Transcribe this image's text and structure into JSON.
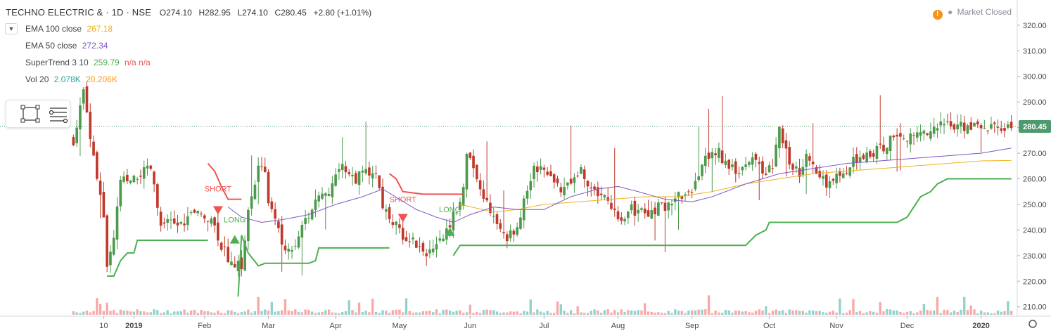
{
  "header": {
    "symbol": "TECHNO ELECTRIC & · 1D · NSE",
    "open": "O274.10",
    "high": "H282.95",
    "low": "L274.10",
    "close": "C280.45",
    "change": "+2.80 (+1.01%)"
  },
  "status": {
    "label": "Market Closed",
    "icon": "warning-icon"
  },
  "indicators": [
    {
      "name": "EMA 100 close",
      "value": "267.18",
      "color": "#f2b01e"
    },
    {
      "name": "EMA 50 close",
      "value": "272.34",
      "color": "#7e57c2"
    },
    {
      "name": "SuperTrend 3 10",
      "value": "259.79",
      "extra": "n/a n/a",
      "color": "#4caf50",
      "extra_color": "#ef5350"
    },
    {
      "name": "Vol 20",
      "value": "2.078K",
      "value2": "20.206K",
      "color": "#26a69a",
      "color2": "#ff9800"
    }
  ],
  "colors": {
    "up": "#26a69a",
    "down": "#ef5350",
    "up_candle": "#4c9a4c",
    "down_candle": "#c0392b",
    "long": "#4caf50",
    "short": "#ef5350",
    "ema100": "#f2b01e",
    "ema50": "#7e57c2"
  },
  "chart_data": {
    "type": "candlestick",
    "symbol": "TECHNO ELECTRIC &",
    "interval": "1D",
    "exchange": "NSE",
    "last_price": "280.45",
    "y_ticks": [
      "320.00",
      "310.00",
      "300.00",
      "290.00",
      "280.00",
      "270.00",
      "260.00",
      "250.00",
      "240.00",
      "230.00",
      "220.00",
      "210.00"
    ],
    "ylim": [
      208,
      326
    ],
    "x_ticks": [
      "10",
      "2019",
      "Feb",
      "Mar",
      "Apr",
      "May",
      "Jun",
      "Jul",
      "Aug",
      "Sep",
      "Oct",
      "Nov",
      "Dec",
      "2020"
    ],
    "x_tick_index": [
      9,
      18,
      39,
      58,
      78,
      97,
      118,
      140,
      162,
      184,
      207,
      227,
      248,
      270
    ],
    "n_bars": 280,
    "close_keyframes": [
      [
        0,
        275
      ],
      [
        3,
        294
      ],
      [
        7,
        261
      ],
      [
        9,
        245
      ],
      [
        10,
        224
      ],
      [
        12,
        236
      ],
      [
        14,
        260
      ],
      [
        17,
        258
      ],
      [
        20,
        262
      ],
      [
        23,
        264
      ],
      [
        26,
        241
      ],
      [
        29,
        243
      ],
      [
        32,
        242
      ],
      [
        35,
        246
      ],
      [
        38,
        246
      ],
      [
        41,
        245
      ],
      [
        44,
        234
      ],
      [
        47,
        227
      ],
      [
        50,
        226
      ],
      [
        52,
        247
      ],
      [
        55,
        264
      ],
      [
        57,
        262
      ],
      [
        58,
        251
      ],
      [
        60,
        246
      ],
      [
        62,
        233
      ],
      [
        64,
        232
      ],
      [
        66,
        235
      ],
      [
        68,
        243
      ],
      [
        71,
        248
      ],
      [
        74,
        254
      ],
      [
        77,
        257
      ],
      [
        80,
        266
      ],
      [
        82,
        262
      ],
      [
        84,
        260
      ],
      [
        86,
        262
      ],
      [
        88,
        263
      ],
      [
        90,
        262
      ],
      [
        92,
        249
      ],
      [
        95,
        243
      ],
      [
        98,
        238
      ],
      [
        101,
        236
      ],
      [
        104,
        232
      ],
      [
        107,
        231
      ],
      [
        110,
        237
      ],
      [
        113,
        246
      ],
      [
        115,
        249
      ],
      [
        117,
        268
      ],
      [
        119,
        265
      ],
      [
        121,
        255
      ],
      [
        123,
        250
      ],
      [
        125,
        247
      ],
      [
        127,
        240
      ],
      [
        129,
        236
      ],
      [
        131,
        240
      ],
      [
        133,
        246
      ],
      [
        135,
        255
      ],
      [
        137,
        264
      ],
      [
        139,
        265
      ],
      [
        141,
        262
      ],
      [
        143,
        260
      ],
      [
        145,
        255
      ],
      [
        147,
        257
      ],
      [
        149,
        261
      ],
      [
        151,
        263
      ],
      [
        153,
        256
      ],
      [
        155,
        255
      ],
      [
        157,
        254
      ],
      [
        160,
        250
      ],
      [
        162,
        244
      ],
      [
        164,
        243
      ],
      [
        166,
        249
      ],
      [
        168,
        246
      ],
      [
        170,
        248
      ],
      [
        172,
        246
      ],
      [
        174,
        249
      ],
      [
        176,
        249
      ],
      [
        178,
        252
      ],
      [
        180,
        254
      ],
      [
        182,
        253
      ],
      [
        184,
        256
      ],
      [
        186,
        261
      ],
      [
        188,
        267
      ],
      [
        190,
        270
      ],
      [
        192,
        270
      ],
      [
        194,
        266
      ],
      [
        196,
        264
      ],
      [
        198,
        263
      ],
      [
        200,
        266
      ],
      [
        202,
        270
      ],
      [
        204,
        264
      ],
      [
        206,
        262
      ],
      [
        208,
        265
      ],
      [
        210,
        280
      ],
      [
        212,
        270
      ],
      [
        214,
        264
      ],
      [
        216,
        262
      ],
      [
        218,
        268
      ],
      [
        220,
        264
      ],
      [
        222,
        261
      ],
      [
        224,
        258
      ],
      [
        226,
        260
      ],
      [
        228,
        261
      ],
      [
        230,
        262
      ],
      [
        232,
        267
      ],
      [
        234,
        269
      ],
      [
        236,
        270
      ],
      [
        238,
        270
      ],
      [
        240,
        272
      ],
      [
        242,
        273
      ],
      [
        244,
        278
      ],
      [
        246,
        277
      ],
      [
        248,
        276
      ],
      [
        250,
        277
      ],
      [
        252,
        278
      ],
      [
        254,
        279
      ],
      [
        256,
        280
      ],
      [
        258,
        281
      ],
      [
        260,
        282
      ],
      [
        262,
        280
      ],
      [
        264,
        281
      ],
      [
        266,
        280
      ],
      [
        268,
        281
      ],
      [
        270,
        280
      ],
      [
        273,
        280
      ],
      [
        276,
        280
      ],
      [
        279,
        280
      ]
    ],
    "ema50_keyframes": [
      [
        46,
        249
      ],
      [
        50,
        245
      ],
      [
        56,
        243
      ],
      [
        62,
        244
      ],
      [
        70,
        246
      ],
      [
        78,
        250
      ],
      [
        86,
        253
      ],
      [
        92,
        256
      ],
      [
        97,
        252
      ],
      [
        102,
        248
      ],
      [
        108,
        245
      ],
      [
        113,
        243
      ],
      [
        118,
        246
      ],
      [
        125,
        249
      ],
      [
        132,
        248
      ],
      [
        140,
        248
      ],
      [
        148,
        253
      ],
      [
        156,
        256
      ],
      [
        162,
        257
      ],
      [
        168,
        255
      ],
      [
        176,
        252
      ],
      [
        184,
        251
      ],
      [
        190,
        253
      ],
      [
        200,
        258
      ],
      [
        210,
        262
      ],
      [
        220,
        264
      ],
      [
        230,
        266
      ],
      [
        240,
        267
      ],
      [
        250,
        268
      ],
      [
        260,
        269
      ],
      [
        270,
        270
      ],
      [
        279,
        272
      ]
    ],
    "ema100_keyframes": [
      [
        115,
        250
      ],
      [
        125,
        247
      ],
      [
        132,
        248
      ],
      [
        140,
        250
      ],
      [
        150,
        251
      ],
      [
        160,
        252
      ],
      [
        170,
        253
      ],
      [
        180,
        253
      ],
      [
        190,
        255
      ],
      [
        200,
        258
      ],
      [
        210,
        260
      ],
      [
        220,
        262
      ],
      [
        230,
        263
      ],
      [
        240,
        264
      ],
      [
        250,
        265
      ],
      [
        260,
        266
      ],
      [
        270,
        267
      ],
      [
        279,
        267.18
      ]
    ],
    "supertrend_segments": [
      {
        "side": "long",
        "points": [
          [
            10,
            222
          ],
          [
            12,
            222
          ],
          [
            13,
            225
          ],
          [
            14,
            228
          ],
          [
            16,
            231
          ],
          [
            18,
            231
          ],
          [
            19,
            236
          ],
          [
            28,
            236
          ],
          [
            34,
            236
          ],
          [
            36,
            236
          ],
          [
            40,
            236
          ]
        ]
      },
      {
        "side": "short",
        "points": [
          [
            40,
            266
          ],
          [
            42,
            263
          ],
          [
            44,
            257
          ],
          [
            46,
            252
          ],
          [
            48,
            252
          ],
          [
            50,
            252
          ]
        ]
      },
      {
        "side": "long",
        "points": [
          [
            49,
            214
          ],
          [
            50,
            238
          ],
          [
            52,
            231
          ],
          [
            55,
            226
          ],
          [
            57,
            227
          ],
          [
            62,
            227
          ],
          [
            70,
            227
          ],
          [
            72,
            228
          ],
          [
            73,
            233
          ],
          [
            80,
            233
          ],
          [
            90,
            233
          ],
          [
            94,
            233
          ]
        ]
      },
      {
        "side": "short",
        "points": [
          [
            94,
            262
          ],
          [
            96,
            260
          ],
          [
            98,
            255
          ],
          [
            104,
            254
          ],
          [
            110,
            254
          ],
          [
            113,
            254
          ],
          [
            116,
            254
          ]
        ]
      },
      {
        "side": "long",
        "points": [
          [
            113,
            230
          ],
          [
            115,
            234
          ],
          [
            120,
            234
          ],
          [
            130,
            234
          ],
          [
            140,
            234
          ],
          [
            150,
            234
          ],
          [
            160,
            234
          ],
          [
            170,
            234
          ],
          [
            180,
            234
          ],
          [
            190,
            234
          ],
          [
            200,
            234
          ],
          [
            203,
            238
          ],
          [
            206,
            240
          ],
          [
            207,
            243
          ],
          [
            220,
            243
          ],
          [
            240,
            243
          ],
          [
            245,
            243
          ],
          [
            248,
            245
          ],
          [
            250,
            249
          ],
          [
            252,
            253
          ],
          [
            255,
            255
          ],
          [
            257,
            258
          ],
          [
            260,
            260
          ],
          [
            270,
            260
          ],
          [
            279,
            260
          ]
        ]
      }
    ],
    "annotations": [
      {
        "text": "SHORT",
        "bar": 43,
        "price": 255,
        "color": "#ef5350",
        "arrow": "down",
        "arrow_price": 246
      },
      {
        "text": "LONG",
        "bar": 48,
        "price": 243,
        "color": "#4caf50",
        "arrow": "up",
        "arrow_price": 238
      },
      {
        "text": "SHORT",
        "bar": 98,
        "price": 251,
        "color": "#ef5350",
        "arrow": "down",
        "arrow_price": 243
      },
      {
        "text": "LONG",
        "bar": 112,
        "price": 247,
        "color": "#4caf50",
        "arrow": "up",
        "arrow_price": 241
      }
    ],
    "price_line": 280.45
  }
}
